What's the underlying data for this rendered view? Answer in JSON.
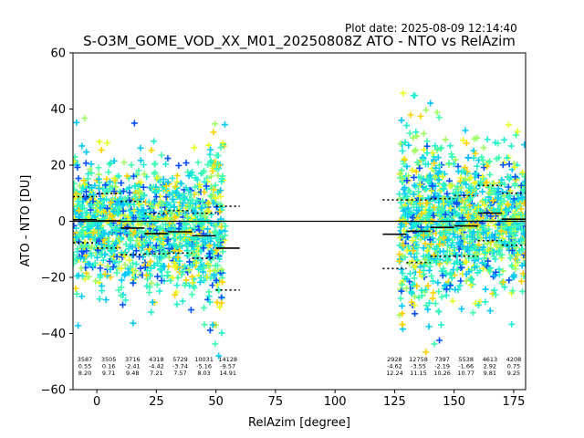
{
  "plot_date": "Plot date: 2025-08-09 12:14:40",
  "chart_data": {
    "type": "scatter",
    "title": "S-O3M_GOME_VOD_XX_M01_20250808Z ATO - NTO vs RelAzim",
    "xlabel": "RelAzim [degree]",
    "ylabel": "ATO - NTO [DU]",
    "xlim": [
      -10,
      180
    ],
    "ylim": [
      -60,
      60
    ],
    "x_ticks": [
      0,
      25,
      50,
      75,
      100,
      125,
      150,
      175
    ],
    "y_ticks": [
      -60,
      -40,
      -20,
      0,
      20,
      40,
      60
    ],
    "grid": false,
    "legend": "none",
    "zero_line": 0,
    "colors": {
      "cyan": "#00c8ff",
      "green": "#40ffb0",
      "aqua": "#20f0d0",
      "yellow": "#e8ff20",
      "gold": "#ffd200",
      "blue": "#0050ff",
      "lime": "#a0ff60",
      "black": "#000000"
    },
    "bins": [
      {
        "x": 0,
        "n": "3587",
        "mean": "0.55",
        "std": "8.20",
        "mean_val": 0.55,
        "std_val": 8.2,
        "has_points": true
      },
      {
        "x": 10,
        "n": "3505",
        "mean": "0.16",
        "std": "9.71",
        "mean_val": 0.16,
        "std_val": 9.71,
        "has_points": true
      },
      {
        "x": 20,
        "n": "3716",
        "mean": "-2.41",
        "std": "9.48",
        "mean_val": -2.41,
        "std_val": 9.48,
        "has_points": true
      },
      {
        "x": 30,
        "n": "4318",
        "mean": "-4.42",
        "std": "7.21",
        "mean_val": -4.42,
        "std_val": 7.21,
        "has_points": true
      },
      {
        "x": 40,
        "n": "5729",
        "mean": "-3.74",
        "std": "7.57",
        "mean_val": -3.74,
        "std_val": 7.57,
        "has_points": true
      },
      {
        "x": 50,
        "n": "10031",
        "mean": "-5.16",
        "std": "8.03",
        "mean_val": -5.16,
        "std_val": 8.03,
        "has_points": true
      },
      {
        "x": 60,
        "n": "14128",
        "mean": "-9.57",
        "std": "14.91",
        "mean_val": -9.57,
        "std_val": 14.91,
        "has_points": true
      },
      {
        "x": 130,
        "n": "2928",
        "mean": "-4.62",
        "std": "12.24",
        "mean_val": -4.62,
        "std_val": 12.24,
        "has_points": true
      },
      {
        "x": 140,
        "n": "12758",
        "mean": "-3.55",
        "std": "11.15",
        "mean_val": -3.55,
        "std_val": 11.15,
        "has_points": true
      },
      {
        "x": 150,
        "n": "7397",
        "mean": "-2.19",
        "std": "10.26",
        "mean_val": -2.19,
        "std_val": 10.26,
        "has_points": true
      },
      {
        "x": 160,
        "n": "5538",
        "mean": "-1.66",
        "std": "10.77",
        "mean_val": -1.66,
        "std_val": 10.77,
        "has_points": true
      },
      {
        "x": 170,
        "n": "4613",
        "mean": "2.92",
        "std": "9.81",
        "mean_val": 2.92,
        "std_val": 9.81,
        "has_points": true
      },
      {
        "x": 180,
        "n": "4208",
        "mean": "0.75",
        "std": "9.25",
        "mean_val": 0.75,
        "std_val": 9.25,
        "has_points": true
      }
    ]
  }
}
